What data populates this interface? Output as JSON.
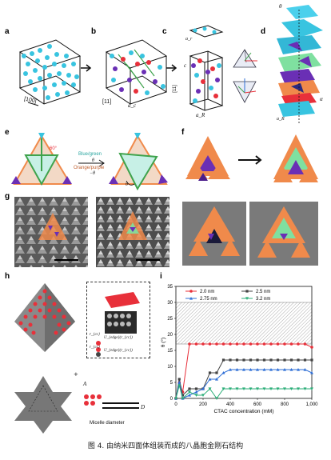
{
  "panels": {
    "a": {
      "label": "a",
      "axis": "[100]"
    },
    "b": {
      "label": "b",
      "axis": "[11]",
      "sub": "a_c"
    },
    "c": {
      "label": "c",
      "top_axis": "a_r",
      "axis": "[11]",
      "sub": "a_R",
      "side": "c"
    },
    "d": {
      "label": "d",
      "theta": "θ",
      "alpha": "α",
      "aR": "a_R"
    },
    "e": {
      "label": "e",
      "angle": "60°",
      "blue_green": "Blue/green",
      "theta": "θ",
      "orange_purple": "Orange/purple",
      "neg_theta": "−θ",
      "theta2": "θ"
    },
    "f": {
      "label": "f"
    },
    "g": {
      "label": "g"
    },
    "h": {
      "label": "h",
      "A": "A",
      "D": "D",
      "plus": "+",
      "micelle": "Micelle diameter",
      "r1": "r_{cc}",
      "u1": "U_{edge}(r_{cc})",
      "r2": "r_{cc}",
      "u2": "U_{edge}(r_{cc})"
    },
    "i": {
      "label": "i"
    }
  },
  "chart_data": {
    "type": "line",
    "xlabel": "CTAC concentration (mM)",
    "ylabel": "θ (°)",
    "xlim": [
      0,
      1000
    ],
    "ylim": [
      0,
      35
    ],
    "xticks": [
      "0",
      "200",
      "400",
      "600",
      "800",
      "1,000"
    ],
    "yticks": [
      "0",
      "5",
      "10",
      "15",
      "20",
      "25",
      "30",
      "35"
    ],
    "shaded_band": [
      17,
      30
    ],
    "series": [
      {
        "name": "2.0 nm",
        "color": "#e8303a",
        "marker": "circle",
        "x": [
          0,
          25,
          50,
          100,
          150,
          200,
          250,
          300,
          350,
          400,
          450,
          500,
          550,
          600,
          650,
          700,
          750,
          800,
          850,
          900,
          950,
          1000
        ],
        "y": [
          0,
          5,
          2,
          17,
          17,
          17,
          17,
          17,
          17,
          17,
          17,
          17,
          17,
          17,
          17,
          17,
          17,
          17,
          17,
          17,
          17,
          16
        ]
      },
      {
        "name": "2.5 nm",
        "color": "#444444",
        "marker": "square",
        "x": [
          0,
          25,
          50,
          100,
          150,
          200,
          250,
          300,
          350,
          400,
          450,
          500,
          550,
          600,
          650,
          700,
          750,
          800,
          850,
          900,
          950,
          1000
        ],
        "y": [
          0,
          6,
          1,
          3,
          3,
          3,
          8,
          8,
          12,
          12,
          12,
          12,
          12,
          12,
          12,
          12,
          12,
          12,
          12,
          12,
          12,
          12
        ]
      },
      {
        "name": "2.75 nm",
        "color": "#2f6fd6",
        "marker": "triangle-up",
        "x": [
          0,
          25,
          50,
          100,
          150,
          200,
          250,
          300,
          350,
          400,
          450,
          500,
          550,
          600,
          650,
          700,
          750,
          800,
          850,
          900,
          950,
          1000
        ],
        "y": [
          0,
          5,
          0,
          1,
          2,
          3,
          6,
          6,
          8,
          9,
          9,
          9,
          9,
          9,
          9,
          9,
          9,
          9,
          9,
          9,
          9,
          8
        ]
      },
      {
        "name": "3.2 nm",
        "color": "#2cae78",
        "marker": "triangle-down",
        "x": [
          0,
          25,
          50,
          100,
          150,
          200,
          250,
          300,
          350,
          400,
          450,
          500,
          550,
          600,
          650,
          700,
          750,
          800,
          850,
          900,
          950,
          1000
        ],
        "y": [
          0,
          4,
          0,
          2,
          1,
          1,
          3,
          0,
          3,
          3,
          3,
          3,
          3,
          3,
          3,
          3,
          3,
          3,
          3,
          3,
          3,
          3
        ]
      }
    ]
  },
  "caption": "图 4. 由纳米四面体组装而成的八晶胞金刚石结构",
  "colors": {
    "cyan": "#38c4e0",
    "orange": "#f08a4b",
    "purple": "#6a2fb5",
    "green": "#7fe0a0",
    "red": "#e8303a",
    "grey": "#8a8a8a"
  }
}
